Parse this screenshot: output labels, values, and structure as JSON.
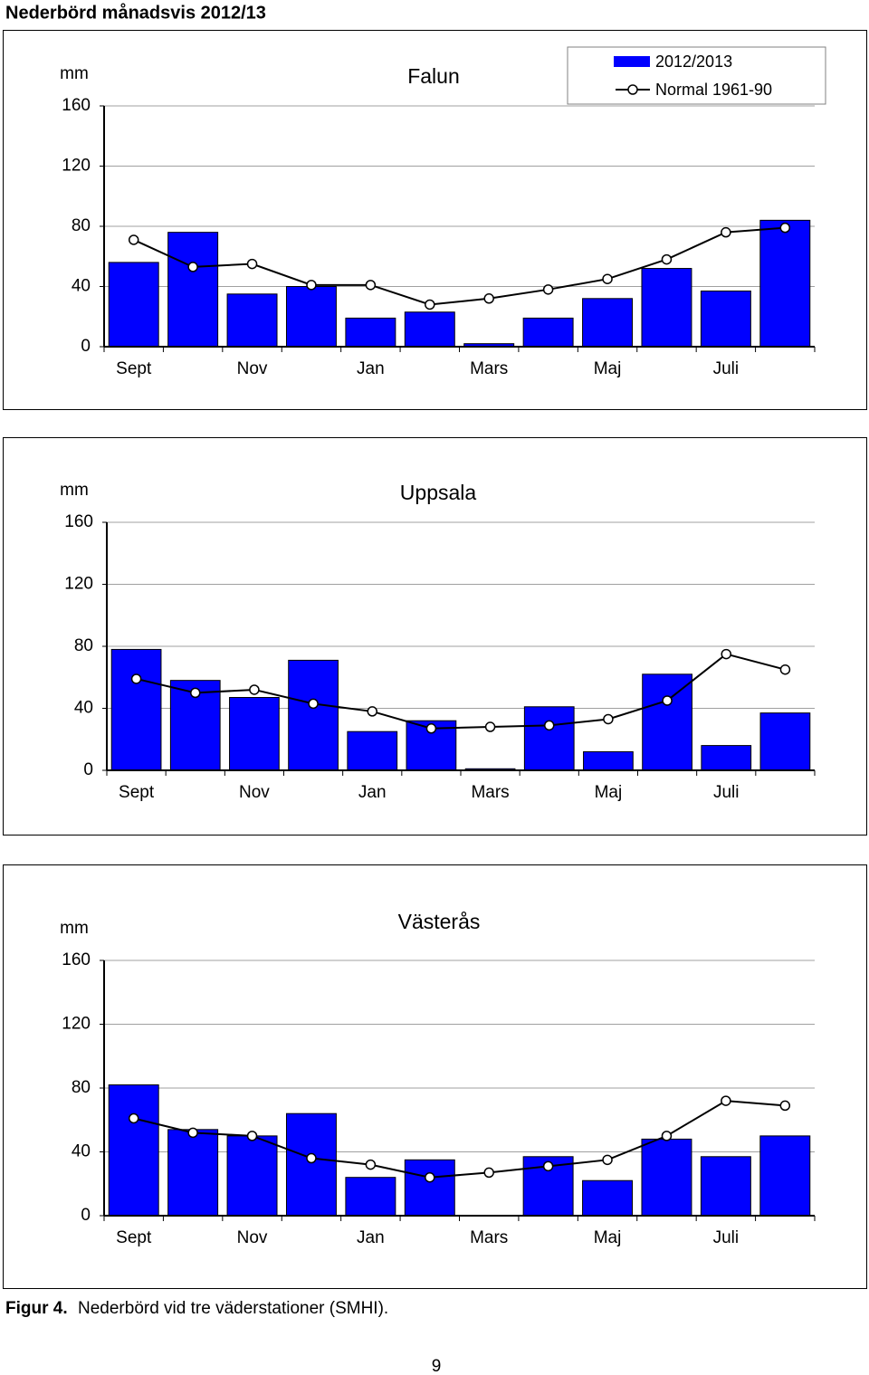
{
  "title": "Nederbörd månadsvis 2012/13",
  "caption": {
    "label": "Figur 4.",
    "text": "Nederbörd vid tre väderstationer (SMHI)."
  },
  "page_number": "9",
  "chart_data": [
    {
      "type": "bar",
      "title": "Falun",
      "ylabel": "mm",
      "categories": [
        "Sept",
        null,
        "Nov",
        null,
        "Jan",
        null,
        "Mars",
        null,
        "Maj",
        null,
        "Juli",
        null
      ],
      "ylim": [
        0,
        160
      ],
      "yticks": [
        0,
        40,
        80,
        120,
        160
      ],
      "grid": true,
      "legend": "upper right",
      "series": [
        {
          "name": "2012/2013",
          "type": "bar",
          "color": "#0000ff",
          "values": [
            56,
            76,
            35,
            40,
            19,
            23,
            2,
            19,
            32,
            52,
            37,
            84
          ]
        },
        {
          "name": "Normal 1961-90",
          "type": "line",
          "color": "#000000",
          "values": [
            71,
            53,
            55,
            41,
            41,
            28,
            32,
            38,
            45,
            58,
            76,
            79
          ]
        }
      ]
    },
    {
      "type": "bar",
      "title": "Uppsala",
      "ylabel": "mm",
      "categories": [
        "Sept",
        null,
        "Nov",
        null,
        "Jan",
        null,
        "Mars",
        null,
        "Maj",
        null,
        "Juli",
        null
      ],
      "ylim": [
        0,
        160
      ],
      "yticks": [
        0,
        40,
        80,
        120,
        160
      ],
      "grid": true,
      "series": [
        {
          "type": "bar",
          "color": "#0000ff",
          "values": [
            78,
            58,
            47,
            71,
            25,
            32,
            1,
            41,
            12,
            62,
            16,
            37
          ]
        },
        {
          "type": "line",
          "color": "#000000",
          "values": [
            59,
            50,
            52,
            43,
            38,
            27,
            28,
            29,
            33,
            45,
            75,
            65
          ]
        }
      ]
    },
    {
      "type": "bar",
      "title": "Västerås",
      "ylabel": "mm",
      "categories": [
        "Sept",
        null,
        "Nov",
        null,
        "Jan",
        null,
        "Mars",
        null,
        "Maj",
        null,
        "Juli",
        null
      ],
      "ylim": [
        0,
        160
      ],
      "yticks": [
        0,
        40,
        80,
        120,
        160
      ],
      "grid": true,
      "series": [
        {
          "type": "bar",
          "color": "#0000ff",
          "values": [
            82,
            54,
            50,
            64,
            24,
            35,
            0,
            37,
            22,
            48,
            37,
            50
          ]
        },
        {
          "type": "line",
          "color": "#000000",
          "values": [
            61,
            52,
            50,
            36,
            32,
            24,
            27,
            31,
            35,
            50,
            72,
            69
          ]
        }
      ]
    }
  ]
}
